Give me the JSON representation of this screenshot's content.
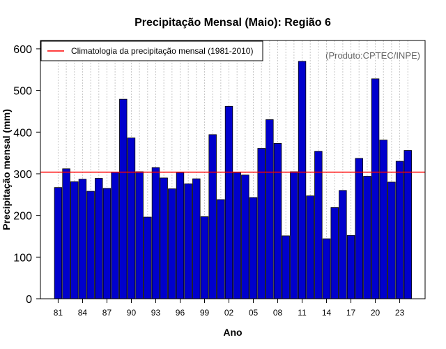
{
  "chart_data": {
    "type": "bar",
    "title": "Precipitação Mensal (Maio): Região 6",
    "xlabel": "Ano",
    "ylabel": "Precipitação mensal (mm)",
    "ylim": [
      0,
      620
    ],
    "yticks": [
      0,
      100,
      200,
      300,
      400,
      500,
      600
    ],
    "credit": "(Produto:CPTEC/INPE)",
    "legend": {
      "label": "Climatologia da precipitação mensal (1981-2010)",
      "placement": "top-left"
    },
    "climatology": 304,
    "tick_labels": [
      "81",
      "84",
      "87",
      "90",
      "93",
      "96",
      "99",
      "02",
      "05",
      "08",
      "11",
      "14",
      "17",
      "20",
      "23"
    ],
    "categories": [
      "1981",
      "1982",
      "1983",
      "1984",
      "1985",
      "1986",
      "1987",
      "1988",
      "1989",
      "1990",
      "1991",
      "1992",
      "1993",
      "1994",
      "1995",
      "1996",
      "1997",
      "1998",
      "1999",
      "2000",
      "2001",
      "2002",
      "2003",
      "2004",
      "2005",
      "2006",
      "2007",
      "2008",
      "2009",
      "2010",
      "2011",
      "2012",
      "2013",
      "2014",
      "2015",
      "2016",
      "2017",
      "2018",
      "2019",
      "2020",
      "2021",
      "2022",
      "2023",
      "2024"
    ],
    "values": [
      267,
      312,
      281,
      287,
      258,
      289,
      265,
      304,
      479,
      386,
      305,
      196,
      315,
      290,
      264,
      303,
      276,
      288,
      197,
      394,
      238,
      462,
      303,
      297,
      243,
      361,
      430,
      373,
      151,
      305,
      570,
      247,
      354,
      144,
      219,
      260,
      152,
      337,
      294,
      528,
      381,
      280,
      330,
      356
    ],
    "colors": {
      "bar_fill": "#0000cc",
      "bar_edge": "#000000",
      "climatology_line": "#ff0000",
      "grid": "#c8c8c8"
    }
  }
}
